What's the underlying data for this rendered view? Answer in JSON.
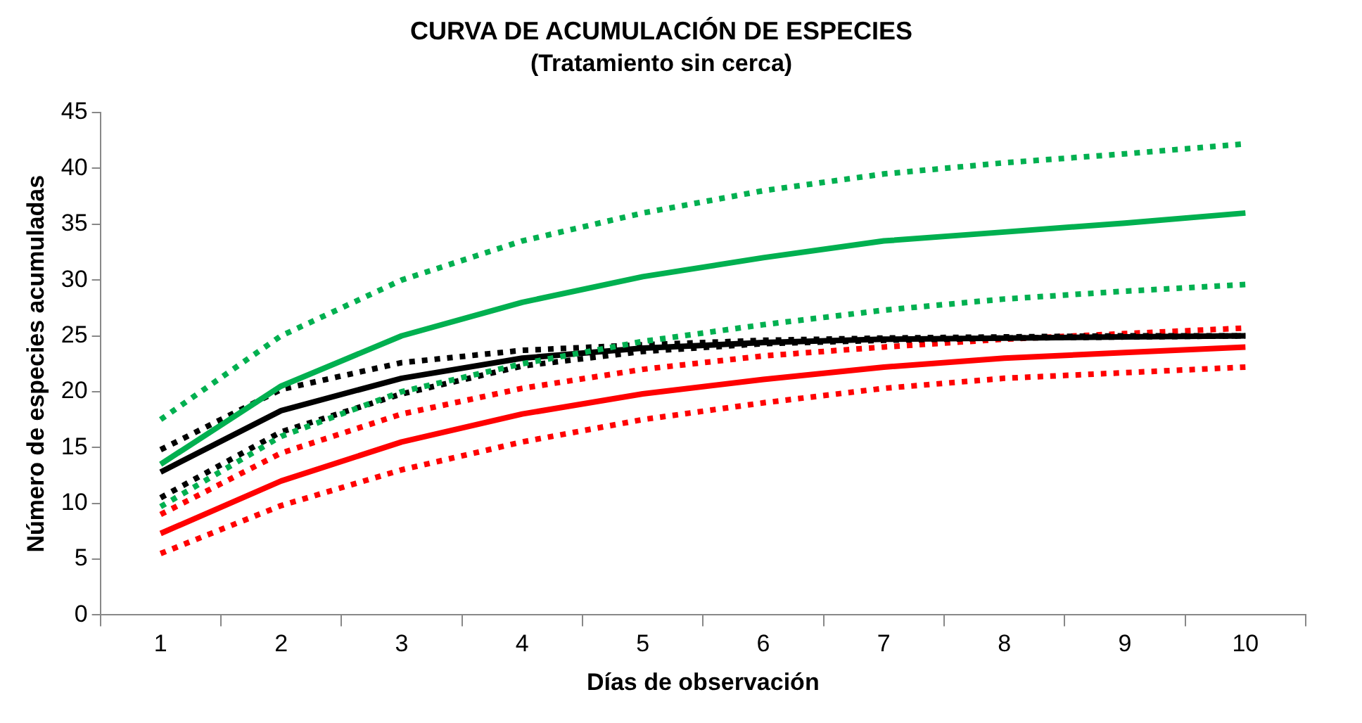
{
  "chart_data": {
    "type": "line",
    "title": "CURVA DE ACUMULACIÓN DE ESPECIES",
    "subtitle": "(Tratamiento sin cerca)",
    "xlabel": "Días de observación",
    "ylabel": "Número de especies acumuladas",
    "categories": [
      "1",
      "2",
      "3",
      "4",
      "5",
      "6",
      "7",
      "8",
      "9",
      "10"
    ],
    "ylim": [
      0,
      45
    ],
    "yticks": [
      0,
      5,
      10,
      15,
      20,
      25,
      30,
      35,
      40,
      45
    ],
    "grid": false,
    "legend": false,
    "marker": "none",
    "series": [
      {
        "color": "#00b050",
        "line_style": "dotted",
        "values": [
          17.5,
          25,
          30,
          33.5,
          36,
          38,
          39.5,
          40.5,
          41.3,
          42.2
        ]
      },
      {
        "color": "#00b050",
        "line_style": "solid",
        "values": [
          13.5,
          20.5,
          25,
          28,
          30.3,
          32,
          33.5,
          34.3,
          35.1,
          36
        ]
      },
      {
        "color": "#00b050",
        "line_style": "dotted",
        "values": [
          9.7,
          16,
          20,
          22.5,
          24.5,
          26,
          27.3,
          28.3,
          29,
          29.6
        ]
      },
      {
        "color": "#000000",
        "line_style": "dotted",
        "values": [
          14.8,
          20.2,
          22.6,
          23.7,
          24.2,
          24.6,
          24.8,
          24.9,
          25,
          25
        ]
      },
      {
        "color": "#000000",
        "line_style": "solid",
        "values": [
          12.8,
          18.3,
          21.2,
          23,
          23.9,
          24.4,
          24.7,
          24.8,
          24.9,
          25
        ]
      },
      {
        "color": "#000000",
        "line_style": "dotted",
        "values": [
          10.5,
          16.4,
          19.8,
          22.3,
          23.6,
          24.3,
          24.6,
          24.8,
          24.9,
          25
        ]
      },
      {
        "color": "#ff0000",
        "line_style": "dotted",
        "values": [
          9,
          14.5,
          18,
          20.3,
          22,
          23.2,
          24,
          24.7,
          25.2,
          25.7
        ]
      },
      {
        "color": "#ff0000",
        "line_style": "solid",
        "values": [
          7.3,
          12,
          15.5,
          18,
          19.8,
          21.1,
          22.2,
          23,
          23.5,
          24
        ]
      },
      {
        "color": "#ff0000",
        "line_style": "dotted",
        "values": [
          5.5,
          9.8,
          13,
          15.5,
          17.5,
          19,
          20.3,
          21.2,
          21.7,
          22.2
        ]
      }
    ]
  }
}
